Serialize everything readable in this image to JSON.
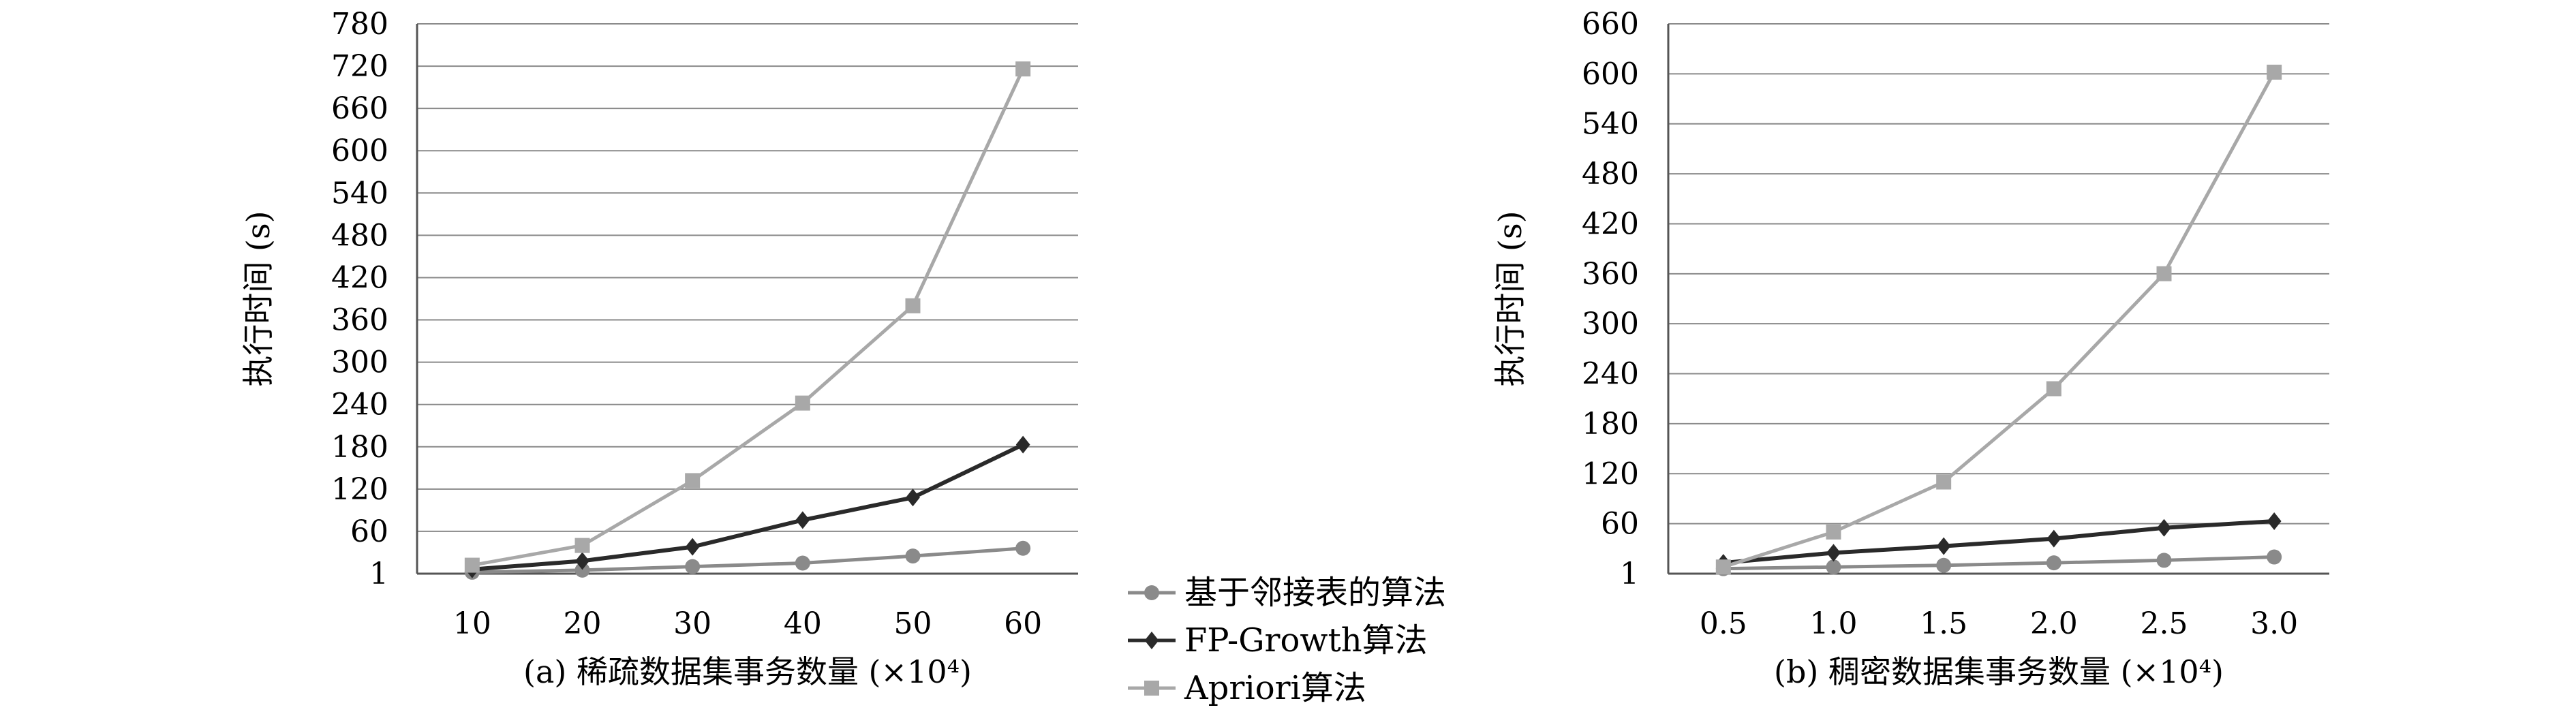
{
  "legend": [
    {
      "name": "基于邻接表的算法",
      "color": "#8a8a8a",
      "marker": "circle"
    },
    {
      "name": "FP-Growth算法",
      "color": "#2a2a2a",
      "marker": "diamond"
    },
    {
      "name": "Apriori算法",
      "color": "#a8a8a8",
      "marker": "square"
    }
  ],
  "chart_data": [
    {
      "type": "line",
      "title": "",
      "xlabel": "(a) 稀疏数据集事务数量 (×10⁴)",
      "ylabel": "执行时间 (s)",
      "categories": [
        "10",
        "20",
        "30",
        "40",
        "50",
        "60"
      ],
      "yticks": [
        "1",
        "60",
        "120",
        "180",
        "240",
        "300",
        "360",
        "420",
        "480",
        "540",
        "600",
        "660",
        "720",
        "780"
      ],
      "ylim": [
        0,
        780
      ],
      "grid": true,
      "legend_position": "bottom-center",
      "series": [
        {
          "name": "基于邻接表的算法",
          "values": [
            2,
            5,
            10,
            15,
            25,
            36
          ]
        },
        {
          "name": "FP-Growth算法",
          "values": [
            6,
            18,
            38,
            76,
            108,
            183
          ]
        },
        {
          "name": "Apriori算法",
          "values": [
            12,
            40,
            132,
            242,
            380,
            716
          ]
        }
      ]
    },
    {
      "type": "line",
      "title": "",
      "xlabel": "(b) 稠密数据集事务数量 (×10⁴)",
      "ylabel": "执行时间 (s)",
      "categories": [
        "0.5",
        "1.0",
        "1.5",
        "2.0",
        "2.5",
        "3.0"
      ],
      "yticks": [
        "1",
        "60",
        "120",
        "180",
        "240",
        "300",
        "360",
        "420",
        "480",
        "540",
        "600",
        "660"
      ],
      "ylim": [
        0,
        660
      ],
      "grid": true,
      "legend_position": "bottom-center",
      "series": [
        {
          "name": "基于邻接表的算法",
          "values": [
            6,
            8,
            10,
            13,
            16,
            20
          ]
        },
        {
          "name": "FP-Growth算法",
          "values": [
            13,
            25,
            33,
            42,
            55,
            63
          ]
        },
        {
          "name": "Apriori算法",
          "values": [
            8,
            50,
            110,
            222,
            360,
            602
          ]
        }
      ]
    }
  ]
}
